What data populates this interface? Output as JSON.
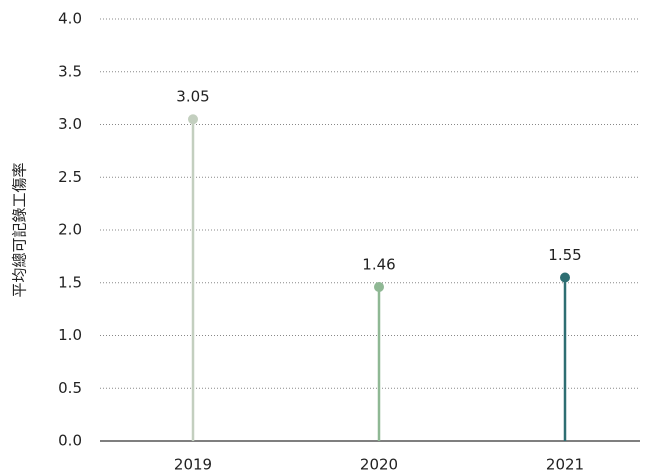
{
  "chart_data": {
    "type": "lollipop",
    "y_label": "平均總可記錄工傷率",
    "categories": [
      "2019",
      "2020",
      "2021"
    ],
    "values": [
      3.05,
      1.46,
      1.55
    ],
    "colors": [
      "#c3cfbf",
      "#8fb894",
      "#2e6e72"
    ],
    "ylim": [
      0,
      4
    ],
    "yticks": [
      {
        "value": 0,
        "label": "0.0"
      },
      0.5,
      {
        "value": 1,
        "label": "1.0"
      },
      1.5,
      {
        "value": 2,
        "label": "2.0"
      },
      2.5,
      {
        "value": 3,
        "label": "3.0"
      },
      3.5,
      {
        "value": 4,
        "label": "4.0"
      }
    ],
    "grid": true
  }
}
